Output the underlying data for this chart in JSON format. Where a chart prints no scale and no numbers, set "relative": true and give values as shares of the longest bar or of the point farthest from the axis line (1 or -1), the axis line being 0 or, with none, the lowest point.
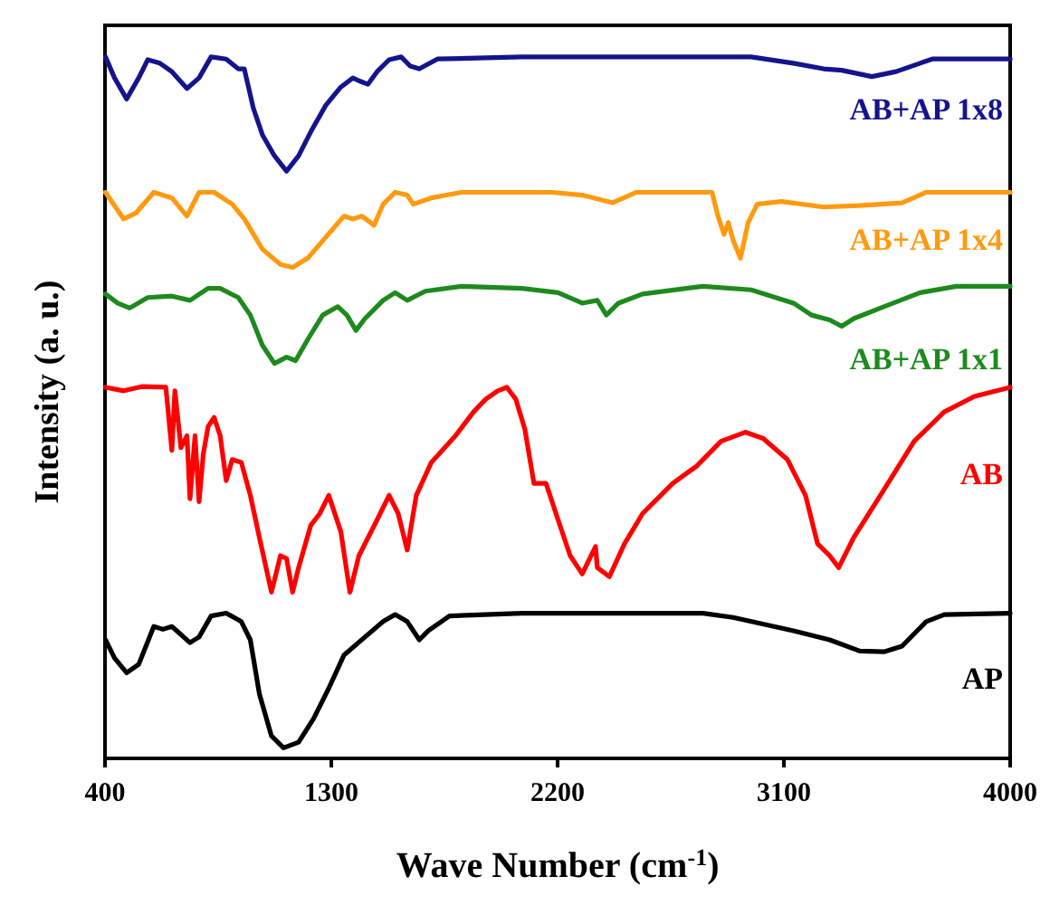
{
  "chart_data": {
    "type": "line",
    "relative": true,
    "xlabel": "Wave Number (cm$^{-1}$)",
    "ylabel": "Intensity (a. u.)",
    "xlim": [
      400,
      4000
    ],
    "xticks": [
      400,
      1300,
      2200,
      3100,
      4000
    ],
    "legend": false,
    "grid": false,
    "marker": "none",
    "line_style": "solid",
    "series": [
      {
        "name": "AB+AP 1x8",
        "color": "#14148c",
        "x": [
          402,
          438,
          486,
          534,
          570,
          618,
          666,
          726,
          774,
          822,
          882,
          930,
          954,
          990,
          1026,
          1074,
          1122,
          1170,
          1218,
          1278,
          1338,
          1386,
          1410,
          1446,
          1482,
          1530,
          1578,
          1614,
          1650,
          1722,
          2058,
          2538,
          2970,
          3138,
          3258,
          3330,
          3450,
          3546,
          3642,
          3690,
          4000
        ],
        "values": [
          1.0,
          0.97,
          0.94,
          0.97,
          0.996,
          0.991,
          0.979,
          0.955,
          0.97,
          1.0,
          0.997,
          0.983,
          0.983,
          0.927,
          0.889,
          0.859,
          0.837,
          0.859,
          0.893,
          0.931,
          0.957,
          0.97,
          0.966,
          0.961,
          0.979,
          0.996,
          1.0,
          0.987,
          0.983,
          0.997,
          1.0,
          1.0,
          1.0,
          0.991,
          0.983,
          0.981,
          0.972,
          0.979,
          0.991,
          0.997,
          0.997
        ]
      },
      {
        "name": "AB+AP 1x4",
        "color": "#ff9a10",
        "x": [
          402,
          474,
          522,
          594,
          666,
          726,
          774,
          834,
          906,
          954,
          1026,
          1098,
          1146,
          1206,
          1278,
          1350,
          1386,
          1422,
          1470,
          1506,
          1554,
          1602,
          1626,
          1698,
          1818,
          2178,
          2298,
          2418,
          2514,
          2814,
          2838,
          2862,
          2879,
          2898,
          2927,
          2958,
          2994,
          3090,
          3258,
          3402,
          3570,
          3666,
          4000
        ],
        "values": [
          0.807,
          0.769,
          0.777,
          0.807,
          0.799,
          0.773,
          0.807,
          0.807,
          0.79,
          0.769,
          0.726,
          0.704,
          0.7,
          0.713,
          0.743,
          0.773,
          0.769,
          0.773,
          0.76,
          0.79,
          0.807,
          0.803,
          0.79,
          0.799,
          0.807,
          0.807,
          0.803,
          0.792,
          0.807,
          0.807,
          0.773,
          0.747,
          0.764,
          0.739,
          0.713,
          0.764,
          0.79,
          0.794,
          0.786,
          0.788,
          0.792,
          0.807,
          0.807
        ]
      },
      {
        "name": "AB+AP 1x1",
        "color": "#1e8a1e",
        "x": [
          402,
          450,
          498,
          570,
          666,
          738,
          810,
          858,
          930,
          978,
          1026,
          1074,
          1122,
          1158,
          1206,
          1266,
          1326,
          1362,
          1398,
          1434,
          1506,
          1554,
          1602,
          1674,
          1818,
          2058,
          2202,
          2298,
          2358,
          2394,
          2442,
          2538,
          2778,
          2970,
          3138,
          3210,
          3282,
          3330,
          3378,
          3498,
          3642,
          3786,
          4000
        ],
        "values": [
          0.662,
          0.649,
          0.642,
          0.657,
          0.659,
          0.653,
          0.67,
          0.67,
          0.657,
          0.632,
          0.589,
          0.563,
          0.572,
          0.567,
          0.597,
          0.632,
          0.644,
          0.632,
          0.61,
          0.627,
          0.653,
          0.664,
          0.653,
          0.666,
          0.673,
          0.67,
          0.664,
          0.649,
          0.653,
          0.632,
          0.649,
          0.662,
          0.673,
          0.668,
          0.649,
          0.632,
          0.625,
          0.616,
          0.627,
          0.644,
          0.664,
          0.673,
          0.673
        ]
      },
      {
        "name": "AB",
        "color": "#ff0000",
        "x": [
          402,
          474,
          546,
          642,
          666,
          678,
          702,
          726,
          738,
          758,
          774,
          791,
          810,
          834,
          858,
          882,
          906,
          942,
          978,
          1014,
          1062,
          1098,
          1122,
          1146,
          1170,
          1218,
          1254,
          1290,
          1338,
          1374,
          1410,
          1482,
          1530,
          1566,
          1602,
          1638,
          1698,
          1794,
          1866,
          1914,
          1962,
          1998,
          2034,
          2070,
          2106,
          2154,
          2202,
          2250,
          2298,
          2351,
          2358,
          2406,
          2466,
          2538,
          2658,
          2754,
          2850,
          2946,
          3018,
          3114,
          3186,
          3234,
          3282,
          3318,
          3378,
          3498,
          3618,
          3738,
          3858,
          4000
        ],
        "values": [
          0.529,
          0.524,
          0.53,
          0.529,
          0.439,
          0.524,
          0.443,
          0.46,
          0.37,
          0.46,
          0.366,
          0.434,
          0.473,
          0.486,
          0.46,
          0.396,
          0.426,
          0.422,
          0.375,
          0.315,
          0.237,
          0.289,
          0.285,
          0.237,
          0.272,
          0.332,
          0.349,
          0.375,
          0.323,
          0.237,
          0.289,
          0.34,
          0.375,
          0.349,
          0.297,
          0.375,
          0.422,
          0.46,
          0.494,
          0.512,
          0.524,
          0.529,
          0.512,
          0.469,
          0.392,
          0.392,
          0.34,
          0.289,
          0.263,
          0.302,
          0.272,
          0.259,
          0.306,
          0.349,
          0.392,
          0.417,
          0.452,
          0.465,
          0.456,
          0.426,
          0.375,
          0.306,
          0.289,
          0.272,
          0.315,
          0.383,
          0.452,
          0.494,
          0.516,
          0.529
        ]
      },
      {
        "name": "AP",
        "color": "#000000",
        "x": [
          402,
          438,
          486,
          534,
          594,
          630,
          666,
          738,
          774,
          822,
          882,
          942,
          978,
          1014,
          1062,
          1110,
          1170,
          1230,
          1290,
          1350,
          1434,
          1506,
          1554,
          1602,
          1650,
          1686,
          1770,
          2058,
          2778,
          2898,
          3138,
          3282,
          3402,
          3498,
          3570,
          3666,
          3738,
          4000
        ],
        "values": [
          0.169,
          0.143,
          0.122,
          0.134,
          0.188,
          0.184,
          0.188,
          0.165,
          0.173,
          0.203,
          0.207,
          0.195,
          0.169,
          0.092,
          0.032,
          0.015,
          0.023,
          0.057,
          0.1,
          0.147,
          0.173,
          0.195,
          0.205,
          0.195,
          0.169,
          0.182,
          0.203,
          0.207,
          0.207,
          0.201,
          0.182,
          0.169,
          0.153,
          0.152,
          0.16,
          0.195,
          0.205,
          0.207
        ]
      }
    ]
  }
}
